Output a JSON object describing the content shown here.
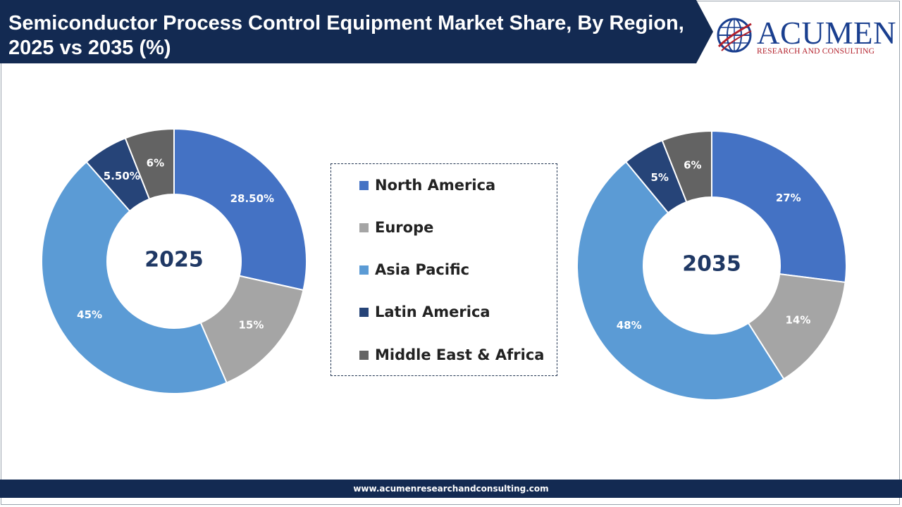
{
  "header": {
    "title": "Semiconductor Process Control Equipment Market Share, By Region, 2025 vs 2035 (%)"
  },
  "logo": {
    "name": "ACUMEN",
    "tagline": "RESEARCH AND CONSULTING",
    "icon": "globe-logo-icon"
  },
  "footer": {
    "url": "www.acumenresearchandconsulting.com"
  },
  "colors": {
    "North America": "#4472c4",
    "Europe": "#a5a5a5",
    "Asia Pacific": "#5b9bd5",
    "Latin America": "#264478",
    "Middle East & Africa": "#636363",
    "center_text": "#1f3864"
  },
  "legend": {
    "items": [
      {
        "label": "North America",
        "color": "#4472c4"
      },
      {
        "label": "Europe",
        "color": "#a5a5a5"
      },
      {
        "label": "Asia Pacific",
        "color": "#5b9bd5"
      },
      {
        "label": "Latin America",
        "color": "#264478"
      },
      {
        "label": "Middle East & Africa",
        "color": "#636363"
      }
    ]
  },
  "chart_data": [
    {
      "type": "pie",
      "variant": "donut",
      "center_label": "2025",
      "categories": [
        "North America",
        "Europe",
        "Asia Pacific",
        "Latin America",
        "Middle East & Africa"
      ],
      "values": [
        28.5,
        15,
        45,
        5.5,
        6
      ],
      "data_labels": [
        "28.50%",
        "15%",
        "45%",
        "5.50%",
        "6%"
      ]
    },
    {
      "type": "pie",
      "variant": "donut",
      "center_label": "2035",
      "categories": [
        "North America",
        "Europe",
        "Asia Pacific",
        "Latin America",
        "Middle East & Africa"
      ],
      "values": [
        27,
        14,
        48,
        5,
        6
      ],
      "data_labels": [
        "27%",
        "14%",
        "48%",
        "5%",
        "6%"
      ]
    }
  ]
}
